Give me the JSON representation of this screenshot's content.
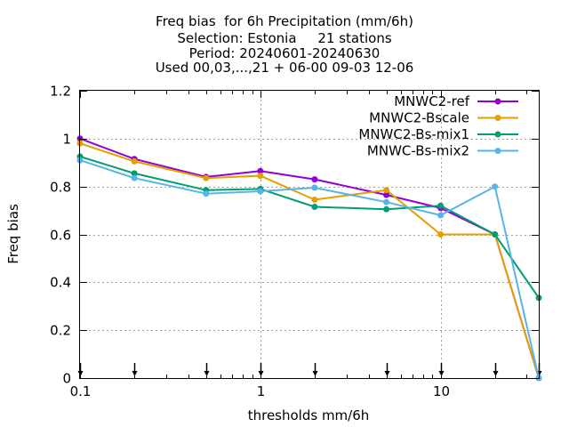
{
  "chart_data": {
    "type": "line",
    "title_lines": [
      "Freq bias  for 6h Precipitation (mm/6h)",
      "Selection: Estonia     21 stations",
      "Period: 20240601-20240630",
      "Used 00,03,...,21 + 06-00 09-03 12-06"
    ],
    "xlabel": "thresholds mm/6h",
    "ylabel": "Freq bias",
    "x_scale": "log",
    "xlim": [
      0.1,
      35
    ],
    "ylim": [
      0,
      1.2
    ],
    "x_ticks": [
      0.1,
      1,
      10
    ],
    "x_tick_labels": [
      "0.1",
      "1",
      "10"
    ],
    "y_ticks": [
      0,
      0.2,
      0.4,
      0.6,
      0.8,
      1,
      1.2
    ],
    "y_tick_labels": [
      "0",
      "0.2",
      "0.4",
      "0.6",
      "0.8",
      "1",
      "1.2"
    ],
    "grid": true,
    "legend_position": "top-right",
    "x": [
      0.1,
      0.2,
      0.5,
      1,
      2,
      5,
      10,
      20,
      35
    ],
    "threshold_arrows": [
      0.1,
      0.2,
      0.5,
      1,
      2,
      5,
      10,
      20,
      35
    ],
    "series": [
      {
        "name": "MNWC2-ref",
        "color": "#9400d3",
        "values": [
          1.0,
          0.915,
          0.84,
          0.865,
          0.83,
          0.765,
          0.71,
          0.6,
          0.0
        ]
      },
      {
        "name": "MNWC2-Bscale",
        "color": "#e69f00",
        "values": [
          0.98,
          0.905,
          0.835,
          0.845,
          0.745,
          0.785,
          0.6,
          0.6,
          0.0
        ]
      },
      {
        "name": "MNWC2-Bs-mix1",
        "color": "#009e73",
        "values": [
          0.925,
          0.855,
          0.785,
          0.79,
          0.715,
          0.705,
          0.72,
          0.6,
          0.335
        ]
      },
      {
        "name": "MNWC-Bs-mix2",
        "color": "#56b4e9",
        "values": [
          0.91,
          0.835,
          0.77,
          0.78,
          0.795,
          0.735,
          0.68,
          0.8,
          0.0
        ]
      }
    ]
  }
}
